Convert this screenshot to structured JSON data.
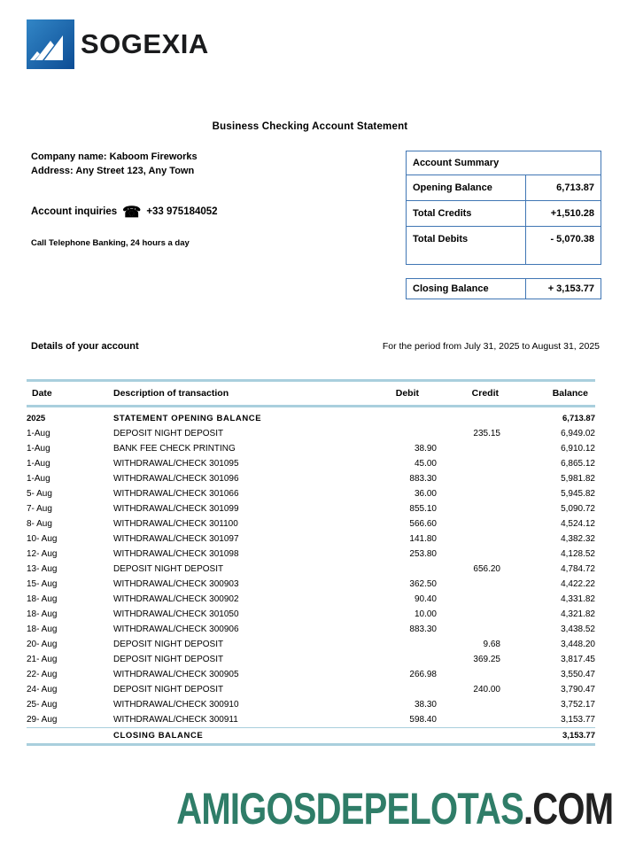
{
  "header": {
    "logo_text": "SOGEXIA",
    "title": "Business Checking Account Statement",
    "company_line1": "Company name: Kaboom Fireworks",
    "company_line2": "Address: Any Street 123, Any Town",
    "inquiries_label": "Account inquiries",
    "phone_icon": "☎",
    "phone_number": "+33 975184052",
    "banking_note": "Call Telephone Banking, 24 hours a day"
  },
  "summary": {
    "title": "Account Summary",
    "rows": [
      {
        "label": "Opening Balance",
        "value": "6,713.87"
      },
      {
        "label": "Total Credits",
        "value": "+1,510.28"
      },
      {
        "label": "Total Debits",
        "value": "- 5,070.38"
      }
    ],
    "closing": {
      "label": "Closing Balance",
      "value": "+ 3,153.77"
    }
  },
  "details": {
    "heading": "Details of your account",
    "period": "For the period from July 31, 2025 to August 31, 2025",
    "columns": [
      "Date",
      "Description of transaction",
      "Debit",
      "Credit",
      "Balance"
    ],
    "transactions": [
      {
        "date": "2025",
        "description": "STATEMENT OPENING BALANCE",
        "debit": "",
        "credit": "",
        "balance": "6,713.87",
        "bold": true
      },
      {
        "date": "1-Aug",
        "description": "DEPOSIT NIGHT DEPOSIT",
        "debit": "",
        "credit": "235.15",
        "balance": "6,949.02"
      },
      {
        "date": "1-Aug",
        "description": "BANK FEE CHECK PRINTING",
        "debit": "38.90",
        "credit": "",
        "balance": "6,910.12"
      },
      {
        "date": "1-Aug",
        "description": "WITHDRAWAL/CHECK 301095",
        "debit": "45.00",
        "credit": "",
        "balance": "6,865.12"
      },
      {
        "date": "1-Aug",
        "description": "WITHDRAWAL/CHECK 301096",
        "debit": "883.30",
        "credit": "",
        "balance": "5,981.82"
      },
      {
        "date": "5- Aug",
        "description": "WITHDRAWAL/CHECK 301066",
        "debit": "36.00",
        "credit": "",
        "balance": "5,945.82"
      },
      {
        "date": "7- Aug",
        "description": "WITHDRAWAL/CHECK 301099",
        "debit": "855.10",
        "credit": "",
        "balance": "5,090.72"
      },
      {
        "date": "8- Aug",
        "description": "WITHDRAWAL/CHECK 301100",
        "debit": "566.60",
        "credit": "",
        "balance": "4,524.12"
      },
      {
        "date": "10- Aug",
        "description": "WITHDRAWAL/CHECK 301097",
        "debit": "141.80",
        "credit": "",
        "balance": "4,382.32"
      },
      {
        "date": "12- Aug",
        "description": "WITHDRAWAL/CHECK 301098",
        "debit": "253.80",
        "credit": "",
        "balance": "4,128.52"
      },
      {
        "date": "13- Aug",
        "description": "DEPOSIT NIGHT DEPOSIT",
        "debit": "",
        "credit": "656.20",
        "balance": "4,784.72"
      },
      {
        "date": "15- Aug",
        "description": "WITHDRAWAL/CHECK 300903",
        "debit": "362.50",
        "credit": "",
        "balance": "4,422.22"
      },
      {
        "date": "18- Aug",
        "description": "WITHDRAWAL/CHECK 300902",
        "debit": "90.40",
        "credit": "",
        "balance": "4,331.82"
      },
      {
        "date": "18- Aug",
        "description": "WITHDRAWAL/CHECK 301050",
        "debit": "10.00",
        "credit": "",
        "balance": "4,321.82"
      },
      {
        "date": "18- Aug",
        "description": "WITHDRAWAL/CHECK 300906",
        "debit": "883.30",
        "credit": "",
        "balance": "3,438.52"
      },
      {
        "date": "20- Aug",
        "description": "DEPOSIT NIGHT DEPOSIT",
        "debit": "",
        "credit": "9.68",
        "balance": "3,448.20"
      },
      {
        "date": "21- Aug",
        "description": "DEPOSIT NIGHT DEPOSIT",
        "debit": "",
        "credit": "369.25",
        "balance": "3,817.45"
      },
      {
        "date": "22- Aug",
        "description": "WITHDRAWAL/CHECK 300905",
        "debit": "266.98",
        "credit": "",
        "balance": "3,550.47"
      },
      {
        "date": "24- Aug",
        "description": "DEPOSIT NIGHT DEPOSIT",
        "debit": "",
        "credit": "240.00",
        "balance": "3,790.47"
      },
      {
        "date": "25- Aug",
        "description": "WITHDRAWAL/CHECK 300910",
        "debit": "38.30",
        "credit": "",
        "balance": "3,752.17"
      },
      {
        "date": "29- Aug",
        "description": "WITHDRAWAL/CHECK 300911",
        "debit": "598.40",
        "credit": "",
        "balance": "3,153.77"
      }
    ],
    "closing_row": {
      "description": "CLOSING BALANCE",
      "balance": "3,153.77"
    }
  },
  "footer": {
    "site_name": "AMIGOSDEPELOTAS",
    "site_tld": ".COM"
  },
  "colors": {
    "table_rule": "#a9cfdd",
    "summary_border": "#4076b4",
    "footer_green": "#2f7d68",
    "footer_dark": "#222222",
    "logo_blue_top": "#3286c6",
    "logo_blue_bottom": "#0d4d95",
    "logo_text_color": "#1a1b1d"
  }
}
